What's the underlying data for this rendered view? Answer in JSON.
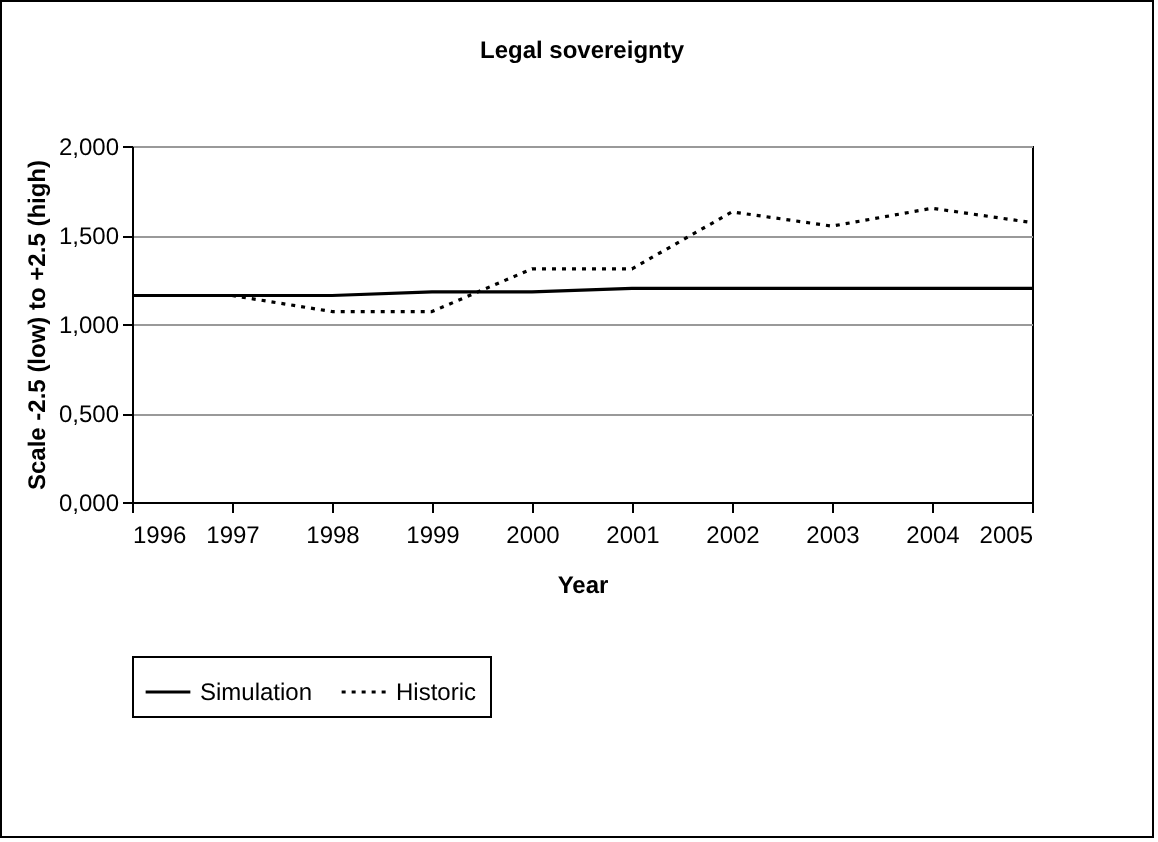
{
  "chart_data": {
    "type": "line",
    "title": "Legal sovereignty",
    "xlabel": "Year",
    "ylabel": "Scale -2.5 (low) to +2.5 (high)",
    "x": [
      1996,
      1997,
      1998,
      1999,
      2000,
      2001,
      2002,
      2003,
      2004,
      2005
    ],
    "series": [
      {
        "name": "Simulation",
        "color": "#000000",
        "line_style": "solid",
        "values": [
          1.16,
          1.16,
          1.16,
          1.18,
          1.18,
          1.2,
          1.2,
          1.2,
          1.2,
          1.2
        ]
      },
      {
        "name": "Historic",
        "color": "#000000",
        "line_style": "dotted",
        "values": [
          1.16,
          1.16,
          1.07,
          1.07,
          1.31,
          1.31,
          1.63,
          1.55,
          1.65,
          1.57
        ]
      }
    ],
    "xlim": [
      1996,
      2005
    ],
    "xticks": [
      1996,
      1997,
      1998,
      1999,
      2000,
      2001,
      2002,
      2003,
      2004,
      2005
    ],
    "ylim": [
      0,
      2
    ],
    "yticks": [
      {
        "value": 0,
        "label": "0,000"
      },
      {
        "value": 0.5,
        "label": "0,500"
      },
      {
        "value": 1,
        "label": "1,000"
      },
      {
        "value": 1.5,
        "label": "1,500"
      },
      {
        "value": 2,
        "label": "2,000"
      }
    ],
    "grid": "y",
    "legend": "bottom",
    "marker": "none"
  }
}
